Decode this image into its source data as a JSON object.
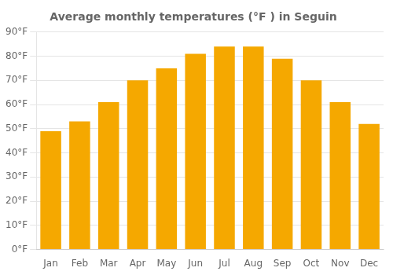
{
  "chart_data": {
    "type": "bar",
    "title": "Average monthly temperatures (°F ) in Seguin",
    "categories": [
      "Jan",
      "Feb",
      "Mar",
      "Apr",
      "May",
      "Jun",
      "Jul",
      "Aug",
      "Sep",
      "Oct",
      "Nov",
      "Dec"
    ],
    "values": [
      49,
      53,
      61,
      70,
      75,
      81,
      84,
      84,
      79,
      70,
      61,
      52
    ],
    "color": "#F5A800",
    "ylim": [
      0,
      90
    ],
    "yticks": [
      {
        "value": 0,
        "label": "0°F"
      },
      {
        "value": 10,
        "label": "10°F"
      },
      {
        "value": 20,
        "label": "20°F"
      },
      {
        "value": 30,
        "label": "30°F"
      },
      {
        "value": 40,
        "label": "40°F"
      },
      {
        "value": 50,
        "label": "50°F"
      },
      {
        "value": 60,
        "label": "60°F"
      },
      {
        "value": 70,
        "label": "70°F"
      },
      {
        "value": 80,
        "label": "80°F"
      },
      {
        "value": 90,
        "label": "90°F"
      }
    ],
    "grid": true
  }
}
